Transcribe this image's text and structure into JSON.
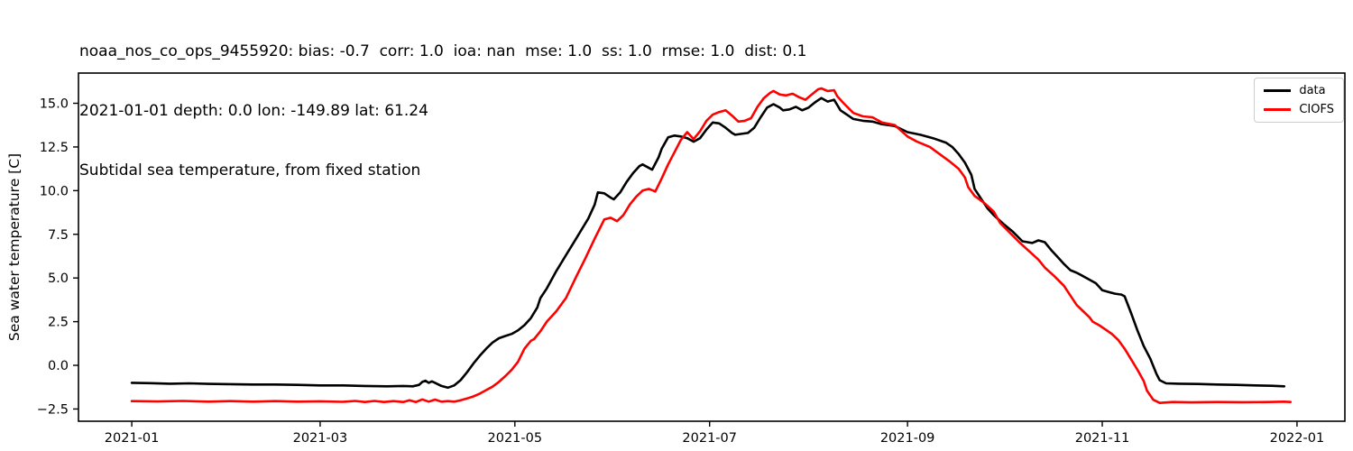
{
  "title": {
    "line1": "noaa_nos_co_ops_9455920: bias: -0.7  corr: 1.0  ioa: nan  mse: 1.0  ss: 1.0  rmse: 1.0  dist: 0.1",
    "line2": "2021-01-01 depth: 0.0 lon: -149.89 lat: 61.24",
    "line3": "Subtidal sea temperature, from fixed station"
  },
  "chart_data": {
    "type": "line",
    "title": "noaa_nos_co_ops_9455920: bias: -0.7  corr: 1.0  ioa: nan  mse: 1.0  ss: 1.0  rmse: 1.0  dist: 0.1",
    "subtitle": "2021-01-01 depth: 0.0 lon: -149.89 lat: 61.24",
    "subtitle2": "Subtidal sea temperature, from fixed station",
    "xlabel": "",
    "ylabel": "Sea water temperature [C]",
    "grid": false,
    "x_unit": "days since 2021-01-01",
    "xlim": [
      -16.7,
      380
    ],
    "ylim": [
      -3.2,
      16.73
    ],
    "x_ticks": [
      {
        "label": "2021-01",
        "day": 0
      },
      {
        "label": "2021-03",
        "day": 59
      },
      {
        "label": "2021-05",
        "day": 120
      },
      {
        "label": "2021-07",
        "day": 181
      },
      {
        "label": "2021-09",
        "day": 243
      },
      {
        "label": "2021-11",
        "day": 304
      },
      {
        "label": "2022-01",
        "day": 365
      }
    ],
    "y_ticks": [
      {
        "label": "−2.5",
        "value": -2.5
      },
      {
        "label": "0.0",
        "value": 0.0
      },
      {
        "label": "2.5",
        "value": 2.5
      },
      {
        "label": "5.0",
        "value": 5.0
      },
      {
        "label": "7.5",
        "value": 7.5
      },
      {
        "label": "10.0",
        "value": 10.0
      },
      {
        "label": "12.5",
        "value": 12.5
      },
      {
        "label": "15.0",
        "value": 15.0
      }
    ],
    "legend_position": "upper right",
    "series": [
      {
        "name": "data",
        "color": "#000000",
        "points": [
          [
            0,
            -1.0
          ],
          [
            6,
            -1.02
          ],
          [
            12,
            -1.05
          ],
          [
            18,
            -1.03
          ],
          [
            24,
            -1.06
          ],
          [
            31,
            -1.08
          ],
          [
            38,
            -1.1
          ],
          [
            45,
            -1.1
          ],
          [
            52,
            -1.12
          ],
          [
            59,
            -1.15
          ],
          [
            66,
            -1.15
          ],
          [
            73,
            -1.18
          ],
          [
            80,
            -1.2
          ],
          [
            85,
            -1.18
          ],
          [
            88,
            -1.2
          ],
          [
            90,
            -1.12
          ],
          [
            91,
            -0.95
          ],
          [
            92,
            -0.88
          ],
          [
            93,
            -1.0
          ],
          [
            94,
            -0.92
          ],
          [
            95,
            -1.0
          ],
          [
            97,
            -1.18
          ],
          [
            99,
            -1.28
          ],
          [
            101,
            -1.15
          ],
          [
            103,
            -0.85
          ],
          [
            105,
            -0.4
          ],
          [
            107,
            0.1
          ],
          [
            109,
            0.55
          ],
          [
            111,
            0.95
          ],
          [
            113,
            1.3
          ],
          [
            115,
            1.55
          ],
          [
            117,
            1.68
          ],
          [
            119,
            1.8
          ],
          [
            121,
            2.0
          ],
          [
            123,
            2.3
          ],
          [
            125,
            2.7
          ],
          [
            127,
            3.3
          ],
          [
            128,
            3.85
          ],
          [
            130,
            4.4
          ],
          [
            133,
            5.4
          ],
          [
            136,
            6.3
          ],
          [
            139,
            7.2
          ],
          [
            141,
            7.8
          ],
          [
            143,
            8.4
          ],
          [
            145,
            9.2
          ],
          [
            146,
            9.9
          ],
          [
            148,
            9.85
          ],
          [
            150,
            9.6
          ],
          [
            151,
            9.5
          ],
          [
            153,
            9.9
          ],
          [
            155,
            10.5
          ],
          [
            157,
            11.0
          ],
          [
            159,
            11.4
          ],
          [
            160,
            11.5
          ],
          [
            162,
            11.3
          ],
          [
            163,
            11.2
          ],
          [
            165,
            11.9
          ],
          [
            166,
            12.4
          ],
          [
            168,
            13.05
          ],
          [
            170,
            13.15
          ],
          [
            172,
            13.1
          ],
          [
            174,
            13.0
          ],
          [
            176,
            12.8
          ],
          [
            178,
            13.0
          ],
          [
            180,
            13.5
          ],
          [
            182,
            13.9
          ],
          [
            184,
            13.85
          ],
          [
            186,
            13.6
          ],
          [
            188,
            13.3
          ],
          [
            189,
            13.2
          ],
          [
            191,
            13.25
          ],
          [
            193,
            13.3
          ],
          [
            195,
            13.6
          ],
          [
            197,
            14.2
          ],
          [
            199,
            14.75
          ],
          [
            201,
            14.95
          ],
          [
            203,
            14.75
          ],
          [
            204,
            14.6
          ],
          [
            206,
            14.65
          ],
          [
            208,
            14.8
          ],
          [
            210,
            14.6
          ],
          [
            212,
            14.75
          ],
          [
            214,
            15.05
          ],
          [
            216,
            15.3
          ],
          [
            218,
            15.1
          ],
          [
            220,
            15.2
          ],
          [
            222,
            14.6
          ],
          [
            224,
            14.35
          ],
          [
            226,
            14.1
          ],
          [
            229,
            14.0
          ],
          [
            232,
            13.95
          ],
          [
            235,
            13.8
          ],
          [
            239,
            13.7
          ],
          [
            243,
            13.35
          ],
          [
            247,
            13.2
          ],
          [
            251,
            13.0
          ],
          [
            255,
            12.75
          ],
          [
            257,
            12.5
          ],
          [
            259,
            12.1
          ],
          [
            261,
            11.6
          ],
          [
            263,
            10.9
          ],
          [
            264,
            10.1
          ],
          [
            266,
            9.55
          ],
          [
            268,
            9.0
          ],
          [
            270,
            8.6
          ],
          [
            273,
            8.1
          ],
          [
            276,
            7.65
          ],
          [
            279,
            7.1
          ],
          [
            282,
            7.0
          ],
          [
            284,
            7.15
          ],
          [
            286,
            7.05
          ],
          [
            288,
            6.6
          ],
          [
            290,
            6.2
          ],
          [
            292,
            5.8
          ],
          [
            294,
            5.45
          ],
          [
            296,
            5.3
          ],
          [
            298,
            5.1
          ],
          [
            300,
            4.9
          ],
          [
            302,
            4.7
          ],
          [
            304,
            4.3
          ],
          [
            306,
            4.2
          ],
          [
            308,
            4.1
          ],
          [
            310,
            4.05
          ],
          [
            311,
            3.95
          ],
          [
            313,
            3.0
          ],
          [
            315,
            2.0
          ],
          [
            317,
            1.1
          ],
          [
            319,
            0.4
          ],
          [
            321,
            -0.5
          ],
          [
            322,
            -0.85
          ],
          [
            324,
            -1.03
          ],
          [
            328,
            -1.05
          ],
          [
            334,
            -1.07
          ],
          [
            340,
            -1.1
          ],
          [
            346,
            -1.12
          ],
          [
            352,
            -1.15
          ],
          [
            357,
            -1.17
          ],
          [
            361,
            -1.2
          ]
        ]
      },
      {
        "name": "CIOFS",
        "color": "#ff0000",
        "points": [
          [
            0,
            -2.05
          ],
          [
            8,
            -2.07
          ],
          [
            16,
            -2.04
          ],
          [
            24,
            -2.08
          ],
          [
            31,
            -2.05
          ],
          [
            38,
            -2.08
          ],
          [
            45,
            -2.05
          ],
          [
            52,
            -2.08
          ],
          [
            59,
            -2.06
          ],
          [
            66,
            -2.09
          ],
          [
            70,
            -2.04
          ],
          [
            73,
            -2.1
          ],
          [
            76,
            -2.04
          ],
          [
            79,
            -2.1
          ],
          [
            82,
            -2.05
          ],
          [
            85,
            -2.1
          ],
          [
            87,
            -2.0
          ],
          [
            89,
            -2.1
          ],
          [
            91,
            -1.95
          ],
          [
            93,
            -2.08
          ],
          [
            95,
            -1.96
          ],
          [
            97,
            -2.08
          ],
          [
            99,
            -2.05
          ],
          [
            101,
            -2.08
          ],
          [
            103,
            -2.0
          ],
          [
            105,
            -1.9
          ],
          [
            107,
            -1.78
          ],
          [
            109,
            -1.62
          ],
          [
            111,
            -1.42
          ],
          [
            113,
            -1.22
          ],
          [
            115,
            -0.95
          ],
          [
            117,
            -0.62
          ],
          [
            119,
            -0.25
          ],
          [
            121,
            0.2
          ],
          [
            123,
            0.95
          ],
          [
            125,
            1.4
          ],
          [
            126,
            1.5
          ],
          [
            128,
            1.95
          ],
          [
            130,
            2.5
          ],
          [
            133,
            3.1
          ],
          [
            136,
            3.85
          ],
          [
            139,
            5.0
          ],
          [
            142,
            6.1
          ],
          [
            145,
            7.25
          ],
          [
            148,
            8.35
          ],
          [
            150,
            8.45
          ],
          [
            152,
            8.25
          ],
          [
            154,
            8.6
          ],
          [
            156,
            9.2
          ],
          [
            158,
            9.65
          ],
          [
            160,
            10.0
          ],
          [
            162,
            10.1
          ],
          [
            164,
            9.95
          ],
          [
            166,
            10.7
          ],
          [
            168,
            11.5
          ],
          [
            170,
            12.2
          ],
          [
            172,
            12.9
          ],
          [
            174,
            13.35
          ],
          [
            176,
            12.95
          ],
          [
            178,
            13.4
          ],
          [
            180,
            14.0
          ],
          [
            182,
            14.35
          ],
          [
            184,
            14.5
          ],
          [
            186,
            14.6
          ],
          [
            188,
            14.3
          ],
          [
            190,
            13.95
          ],
          [
            192,
            14.0
          ],
          [
            194,
            14.15
          ],
          [
            196,
            14.8
          ],
          [
            198,
            15.3
          ],
          [
            200,
            15.6
          ],
          [
            201,
            15.7
          ],
          [
            203,
            15.5
          ],
          [
            205,
            15.45
          ],
          [
            207,
            15.55
          ],
          [
            209,
            15.35
          ],
          [
            211,
            15.2
          ],
          [
            213,
            15.5
          ],
          [
            215,
            15.8
          ],
          [
            216,
            15.85
          ],
          [
            218,
            15.7
          ],
          [
            220,
            15.75
          ],
          [
            221,
            15.4
          ],
          [
            223,
            15.0
          ],
          [
            226,
            14.45
          ],
          [
            229,
            14.25
          ],
          [
            232,
            14.2
          ],
          [
            235,
            13.9
          ],
          [
            239,
            13.75
          ],
          [
            243,
            13.1
          ],
          [
            246,
            12.8
          ],
          [
            250,
            12.5
          ],
          [
            253,
            12.1
          ],
          [
            256,
            11.7
          ],
          [
            259,
            11.25
          ],
          [
            261,
            10.75
          ],
          [
            262,
            10.2
          ],
          [
            264,
            9.7
          ],
          [
            267,
            9.3
          ],
          [
            270,
            8.8
          ],
          [
            272,
            8.15
          ],
          [
            275,
            7.6
          ],
          [
            278,
            7.05
          ],
          [
            281,
            6.55
          ],
          [
            284,
            6.05
          ],
          [
            286,
            5.6
          ],
          [
            289,
            5.1
          ],
          [
            292,
            4.55
          ],
          [
            294,
            4.0
          ],
          [
            296,
            3.45
          ],
          [
            298,
            3.1
          ],
          [
            300,
            2.75
          ],
          [
            301,
            2.5
          ],
          [
            303,
            2.3
          ],
          [
            305,
            2.05
          ],
          [
            307,
            1.8
          ],
          [
            309,
            1.45
          ],
          [
            311,
            0.95
          ],
          [
            313,
            0.35
          ],
          [
            315,
            -0.25
          ],
          [
            317,
            -0.9
          ],
          [
            318,
            -1.45
          ],
          [
            320,
            -1.97
          ],
          [
            322,
            -2.15
          ],
          [
            326,
            -2.1
          ],
          [
            332,
            -2.12
          ],
          [
            340,
            -2.1
          ],
          [
            348,
            -2.11
          ],
          [
            356,
            -2.1
          ],
          [
            361,
            -2.08
          ],
          [
            363,
            -2.1
          ]
        ]
      }
    ]
  }
}
